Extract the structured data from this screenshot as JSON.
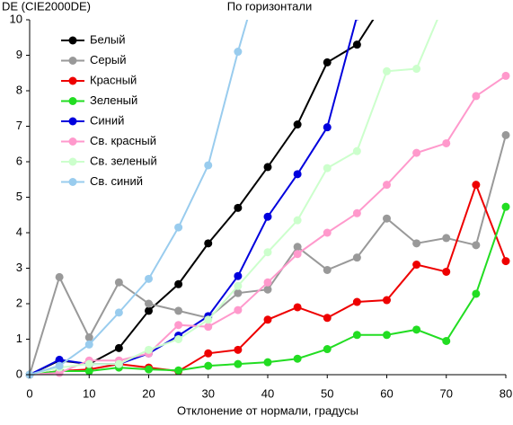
{
  "chart_data": {
    "type": "line",
    "title": "По горизонтали",
    "ylabel": "DE (CIE2000DE)",
    "xlabel": "Отклонение от нормали, градусы",
    "x": [
      0,
      5,
      10,
      15,
      20,
      25,
      30,
      35,
      40,
      45,
      50,
      55,
      60,
      65,
      70,
      75,
      80
    ],
    "xlim": [
      0,
      80
    ],
    "xticks": [
      0,
      10,
      20,
      30,
      40,
      50,
      60,
      70,
      80
    ],
    "ylim": [
      0,
      10
    ],
    "yticks": [
      0,
      1,
      2,
      3,
      4,
      5,
      6,
      7,
      8,
      9,
      10
    ],
    "grid": false,
    "legend": "upper left",
    "series": [
      {
        "name": "Белый",
        "color": "#000000",
        "values": [
          0,
          0.4,
          0.3,
          0.75,
          1.8,
          2.55,
          3.7,
          4.7,
          5.85,
          7.05,
          8.8,
          9.3,
          10.6,
          null,
          null,
          null,
          null
        ]
      },
      {
        "name": "Серый",
        "color": "#999999",
        "values": [
          0,
          2.75,
          1.05,
          2.6,
          2.0,
          1.8,
          1.6,
          2.3,
          2.4,
          3.6,
          2.95,
          3.3,
          4.4,
          3.7,
          3.85,
          3.65,
          6.75
        ]
      },
      {
        "name": "Красный",
        "color": "#ee0000",
        "values": [
          0,
          0.1,
          0.15,
          0.3,
          0.2,
          0.1,
          0.6,
          0.7,
          1.55,
          1.9,
          1.6,
          2.05,
          2.1,
          3.1,
          2.9,
          5.35,
          3.2
        ]
      },
      {
        "name": "Зеленый",
        "color": "#22dd22",
        "values": [
          0,
          0.1,
          0.1,
          0.2,
          0.15,
          0.12,
          0.25,
          0.3,
          0.35,
          0.45,
          0.72,
          1.12,
          1.12,
          1.27,
          0.95,
          2.28,
          4.73
        ]
      },
      {
        "name": "Синий",
        "color": "#0000dd",
        "values": [
          0,
          0.42,
          0.3,
          0.3,
          0.6,
          1.1,
          1.65,
          2.78,
          4.45,
          5.65,
          6.97,
          10.1,
          null,
          null,
          null,
          null,
          null
        ]
      },
      {
        "name": "Св. красный",
        "color": "#ff99cc",
        "values": [
          0,
          0.05,
          0.4,
          0.4,
          0.6,
          1.4,
          1.35,
          1.82,
          2.6,
          3.4,
          4.0,
          4.55,
          5.35,
          6.25,
          6.52,
          7.85,
          8.42
        ]
      },
      {
        "name": "Св. зеленый",
        "color": "#ccffcc",
        "values": [
          0,
          0.2,
          0.3,
          0.3,
          0.7,
          1.0,
          1.55,
          2.5,
          3.45,
          4.35,
          5.82,
          6.3,
          8.55,
          8.62,
          10.6,
          null,
          null
        ]
      },
      {
        "name": "Св. синий",
        "color": "#99ccee",
        "values": [
          0,
          0.25,
          0.85,
          1.75,
          2.7,
          4.15,
          5.9,
          9.1,
          12,
          null,
          null,
          null,
          null,
          null,
          null,
          null,
          null
        ]
      }
    ]
  }
}
